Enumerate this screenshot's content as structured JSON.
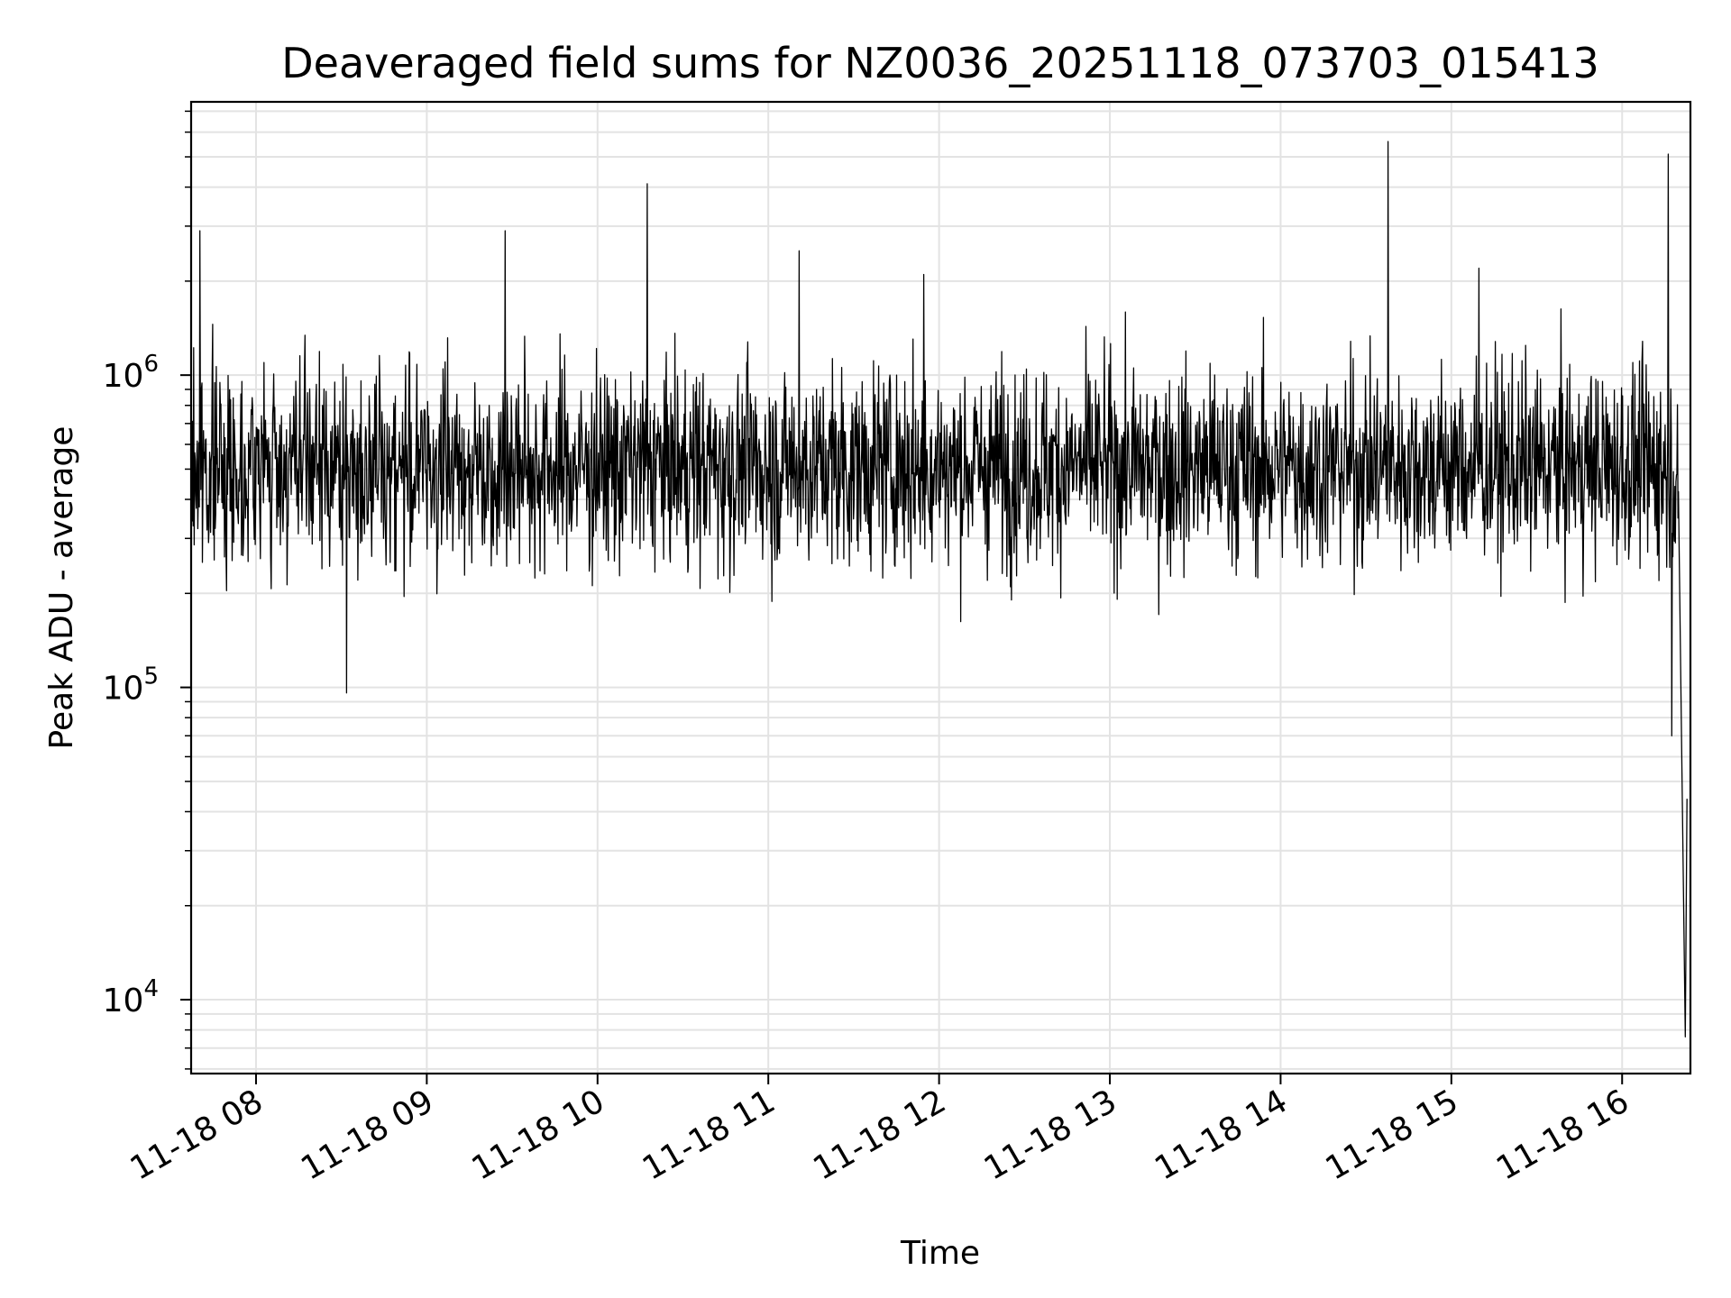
{
  "chart_data": {
    "type": "line",
    "title": "Deaveraged field sums for NZ0036_20251118_073703_015413",
    "xlabel": "Time",
    "ylabel": "Peak ADU - average",
    "yscale": "log",
    "ylim": [
      5800,
      7500000
    ],
    "xlim_hours": [
      7.62,
      16.4
    ],
    "x_ticks": [
      {
        "hour": 8,
        "label": "11-18 08"
      },
      {
        "hour": 9,
        "label": "11-18 09"
      },
      {
        "hour": 10,
        "label": "11-18 10"
      },
      {
        "hour": 11,
        "label": "11-18 11"
      },
      {
        "hour": 12,
        "label": "11-18 12"
      },
      {
        "hour": 13,
        "label": "11-18 13"
      },
      {
        "hour": 14,
        "label": "11-18 14"
      },
      {
        "hour": 15,
        "label": "11-18 15"
      },
      {
        "hour": 16,
        "label": "11-18 16"
      }
    ],
    "y_ticks": [
      {
        "value": 10000,
        "base": "10",
        "exp": "4"
      },
      {
        "value": 100000,
        "base": "10",
        "exp": "5"
      },
      {
        "value": 1000000,
        "base": "10",
        "exp": "6"
      }
    ],
    "grid": true,
    "series": [
      {
        "name": "Peak ADU - average",
        "color": "#000000",
        "n_points": 2900,
        "typical_range": [
          200000,
          1300000
        ],
        "spikes": [
          {
            "hour": 7.67,
            "value": 2900000
          },
          {
            "hour": 8.53,
            "value": 96000
          },
          {
            "hour": 9.46,
            "value": 2900000
          },
          {
            "hour": 10.29,
            "value": 4100000
          },
          {
            "hour": 11.18,
            "value": 2500000
          },
          {
            "hour": 11.91,
            "value": 2100000
          },
          {
            "hour": 14.63,
            "value": 5600000
          },
          {
            "hour": 15.16,
            "value": 2200000
          },
          {
            "hour": 16.27,
            "value": 5100000
          },
          {
            "hour": 16.29,
            "value": 70000
          },
          {
            "hour": 16.37,
            "value": 7600
          },
          {
            "hour": 16.38,
            "value": 44000
          }
        ]
      }
    ]
  }
}
